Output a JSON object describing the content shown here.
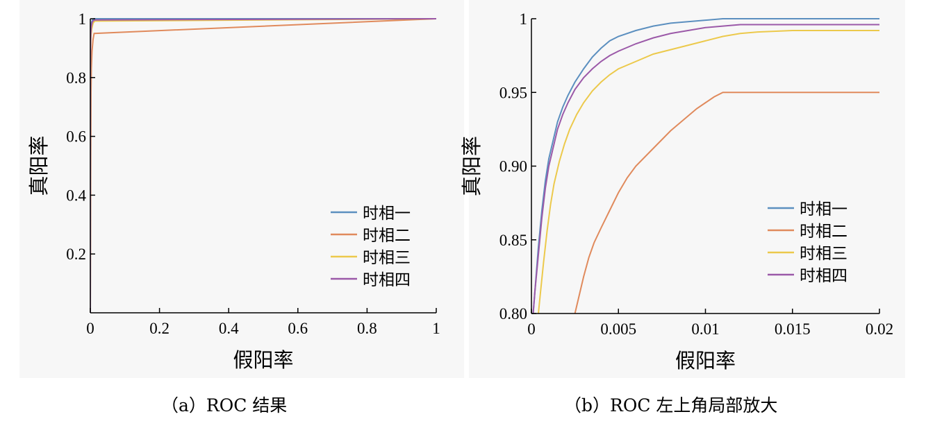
{
  "colors": {
    "series": [
      "#5b8fbf",
      "#e08a5c",
      "#ecc94b",
      "#9b59a8"
    ],
    "axis": "#000000",
    "panel_bg": "#f7f7f7"
  },
  "chart_data": [
    {
      "type": "line",
      "xlabel": "假阳率",
      "ylabel": "真阳率",
      "xlim": [
        0,
        1
      ],
      "ylim": [
        0,
        1
      ],
      "xticks": [
        "0",
        "0.2",
        "0.4",
        "0.6",
        "0.8",
        "1"
      ],
      "xtick_values": [
        0,
        0.2,
        0.4,
        0.6,
        0.8,
        1
      ],
      "yticks": [
        "0.2",
        "0.4",
        "0.6",
        "0.8",
        "1"
      ],
      "ytick_values": [
        0.2,
        0.4,
        0.6,
        0.8,
        1
      ],
      "legend_position": "lower-right",
      "caption": "（a）ROC 结果",
      "series": [
        {
          "name": "时相一",
          "x": [
            0,
            0.0003,
            0.0008,
            0.0015,
            0.003,
            0.006,
            0.01,
            1
          ],
          "y": [
            0,
            0.8,
            0.93,
            0.96,
            0.985,
            0.995,
            1,
            1
          ]
        },
        {
          "name": "时相二",
          "x": [
            0,
            0.001,
            0.002,
            0.003,
            0.005,
            0.008,
            0.011,
            1
          ],
          "y": [
            0,
            0.45,
            0.75,
            0.83,
            0.89,
            0.93,
            0.95,
            1
          ]
        },
        {
          "name": "时相三",
          "x": [
            0,
            0.0004,
            0.001,
            0.002,
            0.004,
            0.008,
            0.013,
            1
          ],
          "y": [
            0,
            0.8,
            0.9,
            0.94,
            0.965,
            0.985,
            0.992,
            1
          ]
        },
        {
          "name": "时相四",
          "x": [
            0,
            0.0003,
            0.0008,
            0.0015,
            0.003,
            0.006,
            0.012,
            1
          ],
          "y": [
            0,
            0.82,
            0.92,
            0.95,
            0.975,
            0.99,
            0.996,
            1
          ]
        }
      ]
    },
    {
      "type": "line",
      "xlabel": "假阳率",
      "ylabel": "真阳率",
      "xlim": [
        0,
        0.02
      ],
      "ylim": [
        0.8,
        1
      ],
      "xticks": [
        "0",
        "0.005",
        "0.01",
        "0.015",
        "0.02"
      ],
      "xtick_values": [
        0,
        0.005,
        0.01,
        0.015,
        0.02
      ],
      "yticks": [
        "0.80",
        "0.85",
        "0.90",
        "0.95",
        "1"
      ],
      "ytick_values": [
        0.8,
        0.85,
        0.9,
        0.95,
        1
      ],
      "legend_position": "lower-right",
      "caption": "（b）ROC 左上角局部放大",
      "series": [
        {
          "name": "时相一",
          "x": [
            0.0001,
            0.0002,
            0.0004,
            0.0006,
            0.0008,
            0.001,
            0.0012,
            0.0015,
            0.0018,
            0.0021,
            0.0025,
            0.003,
            0.0035,
            0.004,
            0.0045,
            0.005,
            0.006,
            0.007,
            0.008,
            0.009,
            0.01,
            0.011,
            0.012,
            0.02
          ],
          "y": [
            0.8,
            0.815,
            0.845,
            0.87,
            0.89,
            0.905,
            0.915,
            0.93,
            0.94,
            0.948,
            0.957,
            0.966,
            0.974,
            0.98,
            0.985,
            0.988,
            0.992,
            0.995,
            0.997,
            0.998,
            0.999,
            1.0,
            1.0,
            1.0
          ]
        },
        {
          "name": "时相二",
          "x": [
            0.0025,
            0.0027,
            0.003,
            0.0033,
            0.0036,
            0.004,
            0.0045,
            0.005,
            0.0055,
            0.006,
            0.0065,
            0.007,
            0.0075,
            0.008,
            0.0085,
            0.009,
            0.0095,
            0.01,
            0.0105,
            0.011,
            0.0115,
            0.012,
            0.014,
            0.016,
            0.018,
            0.02
          ],
          "y": [
            0.8,
            0.81,
            0.825,
            0.838,
            0.848,
            0.858,
            0.87,
            0.882,
            0.892,
            0.9,
            0.906,
            0.912,
            0.918,
            0.924,
            0.929,
            0.934,
            0.939,
            0.943,
            0.947,
            0.95,
            0.95,
            0.95,
            0.95,
            0.95,
            0.95,
            0.95
          ]
        },
        {
          "name": "时相三",
          "x": [
            0.0004,
            0.0005,
            0.0007,
            0.0009,
            0.0011,
            0.0013,
            0.0016,
            0.0019,
            0.0022,
            0.0026,
            0.003,
            0.0035,
            0.004,
            0.0045,
            0.005,
            0.006,
            0.007,
            0.008,
            0.009,
            0.01,
            0.011,
            0.012,
            0.013,
            0.015,
            0.02
          ],
          "y": [
            0.8,
            0.812,
            0.835,
            0.856,
            0.874,
            0.888,
            0.903,
            0.915,
            0.925,
            0.935,
            0.943,
            0.951,
            0.957,
            0.962,
            0.966,
            0.971,
            0.976,
            0.979,
            0.982,
            0.985,
            0.988,
            0.99,
            0.991,
            0.992,
            0.992
          ]
        },
        {
          "name": "时相四",
          "x": [
            0.0001,
            0.0002,
            0.0004,
            0.0006,
            0.0008,
            0.001,
            0.0012,
            0.0015,
            0.0018,
            0.0021,
            0.0025,
            0.003,
            0.0035,
            0.004,
            0.0045,
            0.005,
            0.006,
            0.007,
            0.008,
            0.009,
            0.01,
            0.011,
            0.012,
            0.014,
            0.02
          ],
          "y": [
            0.8,
            0.815,
            0.84,
            0.865,
            0.885,
            0.9,
            0.91,
            0.925,
            0.935,
            0.943,
            0.952,
            0.96,
            0.966,
            0.971,
            0.975,
            0.978,
            0.983,
            0.987,
            0.99,
            0.992,
            0.994,
            0.995,
            0.996,
            0.996,
            0.996
          ]
        }
      ]
    }
  ]
}
